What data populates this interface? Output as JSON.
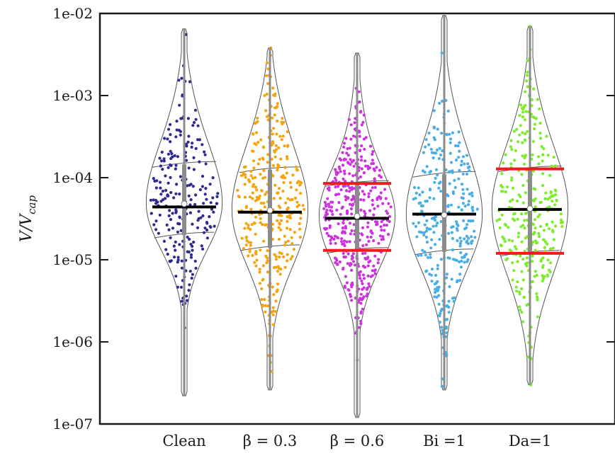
{
  "chart_data": {
    "type": "violin",
    "ylabel": "V/V_cap",
    "yscale": "log",
    "ylim": [
      1e-07,
      0.01
    ],
    "yticks": [
      1e-07,
      1e-06,
      1e-05,
      0.0001,
      0.001,
      0.01
    ],
    "ytick_labels": [
      "1e-07",
      "1e-06",
      "1e-05",
      "1e-04",
      "1e-03",
      "1e-02"
    ],
    "categories": [
      "Clean",
      "β = 0.3",
      "β = 0.6",
      "Bi =1",
      "Da=1"
    ],
    "series": [
      {
        "color": "#2e2a8f",
        "median": 4.8e-05,
        "mean": 4.4e-05,
        "quartiles": [
          2e-05,
          0.000145
        ],
        "range": [
          2.2e-07,
          0.0065
        ],
        "red_lines": [],
        "point_count": 230
      },
      {
        "color": "#f5a30f",
        "median": 4e-05,
        "mean": 3.8e-05,
        "quartiles": [
          1.4e-05,
          0.000125
        ],
        "range": [
          2.6e-07,
          0.0038
        ],
        "red_lines": [],
        "point_count": 330
      },
      {
        "color": "#cc33dd",
        "median": 3.4e-05,
        "mean": 3.2e-05,
        "quartiles": [
          1.3e-05,
          8.5e-05
        ],
        "range": [
          1.2e-07,
          0.0033
        ],
        "red_lines": [
          1.3e-05,
          8.5e-05
        ],
        "point_count": 420
      },
      {
        "color": "#4aaee6",
        "median": 3.5e-05,
        "mean": 3.6e-05,
        "quartiles": [
          1.25e-05,
          0.00011
        ],
        "range": [
          2.6e-07,
          0.0095
        ],
        "red_lines": [],
        "point_count": 300
      },
      {
        "color": "#7bed2a",
        "median": 4.2e-05,
        "mean": 4.1e-05,
        "quartiles": [
          1.2e-05,
          0.000128
        ],
        "range": [
          3e-07,
          0.007
        ],
        "red_lines": [
          1.2e-05,
          0.000128
        ],
        "point_count": 300
      }
    ],
    "grid": false,
    "legend": "none"
  }
}
